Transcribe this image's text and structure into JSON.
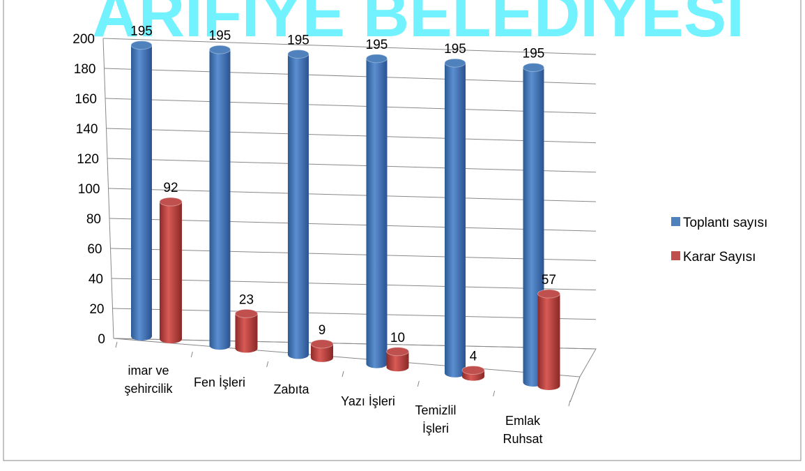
{
  "chart_data": {
    "type": "bar3d",
    "title": "ARİFİYE BELEDİYESİ",
    "categories": [
      "imar ve şehircilik",
      "Fen İşleri",
      "Zabıta",
      "Yazı İşleri",
      "Temizlil İşleri",
      "Emlak Ruhsat"
    ],
    "series": [
      {
        "name": "Toplantı sayısı",
        "color": "#4f81bd",
        "values": [
          195,
          195,
          195,
          195,
          195,
          195
        ]
      },
      {
        "name": "Karar Sayısı",
        "color": "#c0504d",
        "values": [
          92,
          23,
          9,
          10,
          4,
          57
        ]
      }
    ],
    "ylim": [
      0,
      200
    ],
    "yticks": [
      0,
      20,
      40,
      60,
      80,
      100,
      120,
      140,
      160,
      180,
      200
    ],
    "grid": true,
    "legend": "right"
  }
}
